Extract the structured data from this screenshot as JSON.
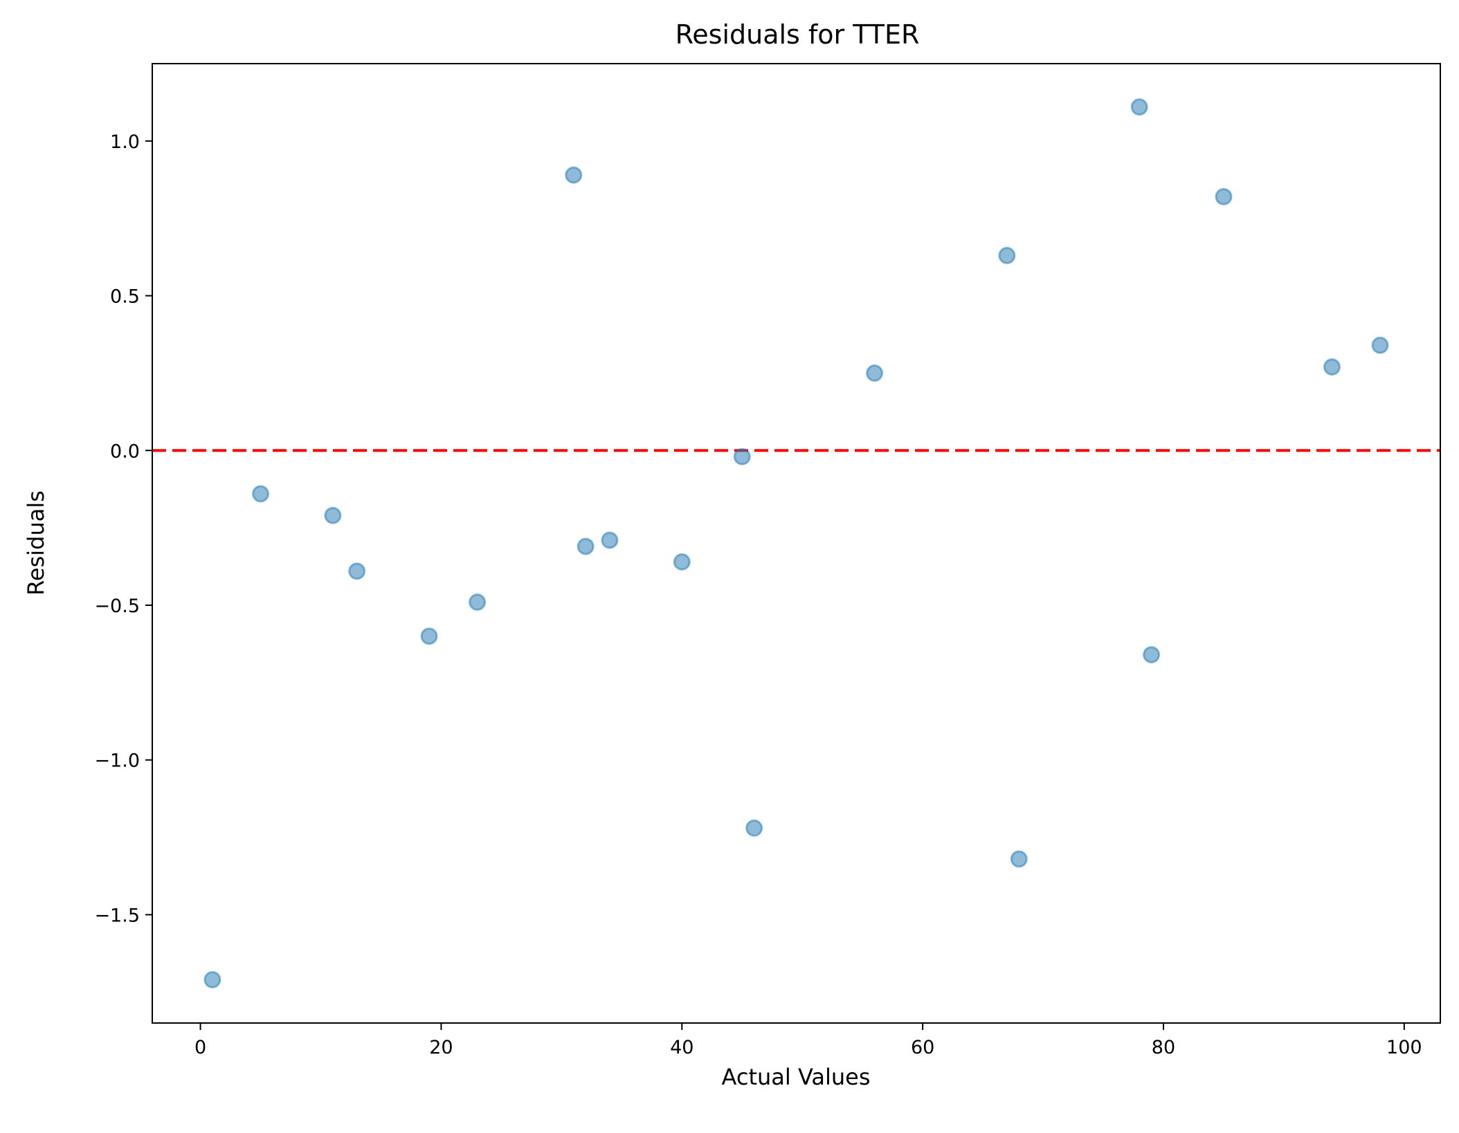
{
  "chart_data": {
    "type": "scatter",
    "title": "Residuals for TTER",
    "xlabel": "Actual Values",
    "ylabel": "Residuals",
    "xlim": [
      -4,
      103
    ],
    "ylim": [
      -1.85,
      1.25
    ],
    "xticks": [
      0,
      20,
      40,
      60,
      80,
      100
    ],
    "xtick_labels": [
      "0",
      "20",
      "40",
      "60",
      "80",
      "100"
    ],
    "yticks": [
      -1.5,
      -1.0,
      -0.5,
      0.0,
      0.5,
      1.0
    ],
    "ytick_labels": [
      "−1.5",
      "−1.0",
      "−0.5",
      "0.0",
      "0.5",
      "1.0"
    ],
    "grid": false,
    "marker_color": "#1f77b4",
    "marker_alpha": 0.5,
    "reference_line": {
      "y": 0.0,
      "style": "dashed",
      "color": "#ff0000"
    },
    "points": [
      {
        "x": 1,
        "y": -1.71
      },
      {
        "x": 5,
        "y": -0.14
      },
      {
        "x": 11,
        "y": -0.21
      },
      {
        "x": 13,
        "y": -0.39
      },
      {
        "x": 19,
        "y": -0.6
      },
      {
        "x": 23,
        "y": -0.49
      },
      {
        "x": 31,
        "y": 0.89
      },
      {
        "x": 32,
        "y": -0.31
      },
      {
        "x": 34,
        "y": -0.29
      },
      {
        "x": 40,
        "y": -0.36
      },
      {
        "x": 45,
        "y": -0.02
      },
      {
        "x": 46,
        "y": -1.22
      },
      {
        "x": 56,
        "y": 0.25
      },
      {
        "x": 67,
        "y": 0.63
      },
      {
        "x": 68,
        "y": -1.32
      },
      {
        "x": 78,
        "y": 1.11
      },
      {
        "x": 79,
        "y": -0.66
      },
      {
        "x": 85,
        "y": 0.82
      },
      {
        "x": 94,
        "y": 0.27
      },
      {
        "x": 98,
        "y": 0.34
      }
    ]
  }
}
